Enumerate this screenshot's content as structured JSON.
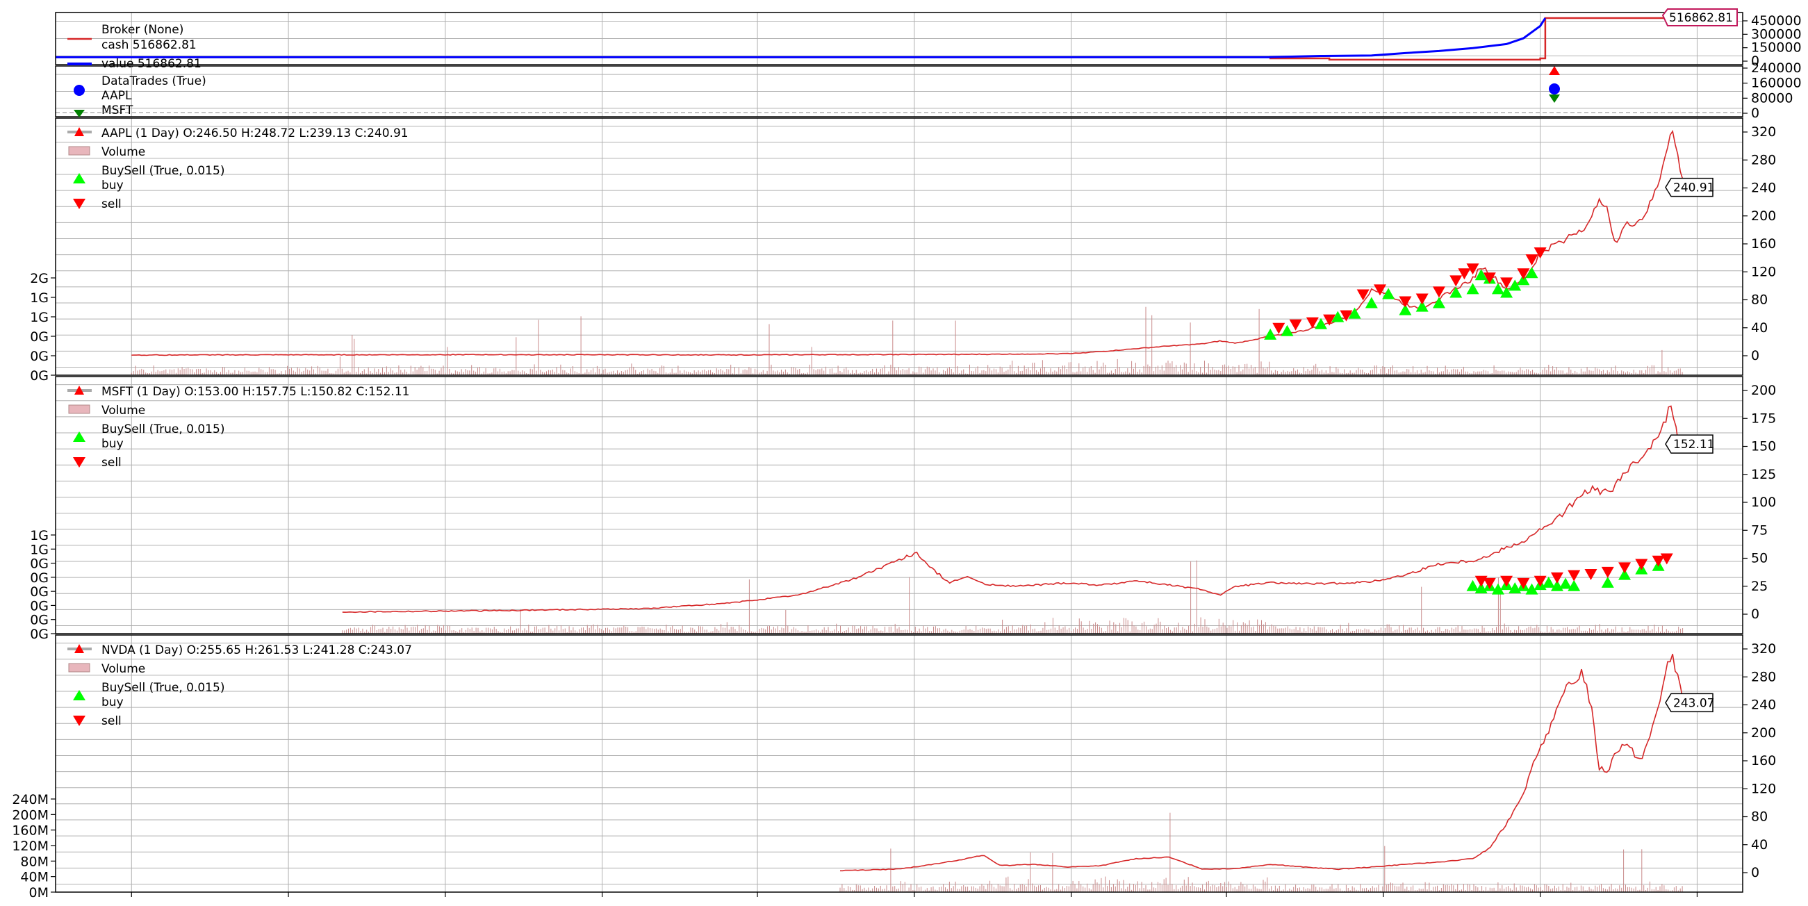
{
  "figure": {
    "colors": {
      "cash": "#d62728",
      "value": "#0000ff",
      "broker_marker": "#c2185b",
      "price": "#d62728",
      "volume": "#c98a8a",
      "buy": "#00ff00",
      "sell": "#ff0000",
      "trade_blue": "#0000ff",
      "trade_green": "#008000",
      "grid": "#b0b0b0",
      "axis": "#000000"
    }
  },
  "chart_data": [
    {
      "type": "line",
      "panel": "broker",
      "legend_title": "Broker (None)",
      "series": [
        {
          "name": "cash 516862.81",
          "color_key": "cash",
          "values": [
            [
              0,
              39000
            ],
            [
              0.72,
              39000
            ],
            [
              0.72,
              25000
            ],
            [
              0.755,
              25000
            ],
            [
              0.755,
              9000
            ],
            [
              0.88,
              9000
            ],
            [
              0.88,
              25000
            ],
            [
              0.883,
              25000
            ],
            [
              0.883,
              516862
            ],
            [
              0.975,
              516862
            ]
          ]
        },
        {
          "name": "value 516862.81",
          "color_key": "value",
          "values": [
            [
              0,
              39000
            ],
            [
              0.72,
              39000
            ],
            [
              0.72,
              41000
            ],
            [
              0.75,
              55000
            ],
            [
              0.78,
              60000
            ],
            [
              0.8,
              90000
            ],
            [
              0.82,
              115000
            ],
            [
              0.84,
              150000
            ],
            [
              0.86,
              200000
            ],
            [
              0.87,
              270000
            ],
            [
              0.88,
              420000
            ],
            [
              0.883,
              516862
            ]
          ]
        }
      ],
      "last_value_label": "516862.81",
      "y_ticks": [
        "450000",
        "300000",
        "150000",
        "0"
      ],
      "ylim": [
        0,
        516862
      ]
    },
    {
      "type": "scatter",
      "panel": "trades",
      "legend_title": "DataTrades (True)",
      "series": [
        {
          "name": "AAPL",
          "marker": "circle",
          "color_key": "trade_blue"
        },
        {
          "name": "MSFT",
          "marker": "triangle-down",
          "color_key": "trade_green"
        }
      ],
      "y_ticks": [
        "240000",
        "160000",
        "80000",
        "0"
      ],
      "ylim": [
        0,
        240000
      ]
    },
    {
      "type": "line",
      "panel": "AAPL",
      "legend_title": "AAPL (1 Day) O:246.50 H:248.72 L:239.13 C:240.91",
      "legend_items": [
        "Volume",
        "BuySell (True, 0.015)",
        "buy",
        "sell"
      ],
      "last_value_label": "240.91",
      "y_ticks": [
        "320",
        "280",
        "240",
        "200",
        "160",
        "120",
        "80",
        "40",
        "0"
      ],
      "ylim": [
        -10,
        340
      ],
      "vol_ticks": [
        "2G",
        "1G",
        "1G",
        "0G",
        "0G",
        "0G"
      ],
      "start": 0.045,
      "price": [
        [
          0.045,
          1
        ],
        [
          0.1,
          1.2
        ],
        [
          0.25,
          1.5
        ],
        [
          0.4,
          1.2
        ],
        [
          0.55,
          2
        ],
        [
          0.6,
          3
        ],
        [
          0.62,
          6
        ],
        [
          0.64,
          10
        ],
        [
          0.66,
          14
        ],
        [
          0.68,
          17
        ],
        [
          0.69,
          21
        ],
        [
          0.7,
          18
        ],
        [
          0.72,
          28
        ],
        [
          0.74,
          36
        ],
        [
          0.76,
          50
        ],
        [
          0.77,
          62
        ],
        [
          0.78,
          95
        ],
        [
          0.79,
          88
        ],
        [
          0.8,
          73
        ],
        [
          0.81,
          68
        ],
        [
          0.82,
          82
        ],
        [
          0.84,
          110
        ],
        [
          0.845,
          128
        ],
        [
          0.85,
          118
        ],
        [
          0.86,
          95
        ],
        [
          0.87,
          108
        ],
        [
          0.875,
          125
        ],
        [
          0.88,
          148
        ],
        [
          0.89,
          160
        ],
        [
          0.9,
          175
        ],
        [
          0.91,
          190
        ],
        [
          0.915,
          230
        ],
        [
          0.92,
          205
        ],
        [
          0.925,
          160
        ],
        [
          0.93,
          185
        ],
        [
          0.94,
          195
        ],
        [
          0.945,
          215
        ],
        [
          0.95,
          245
        ],
        [
          0.955,
          300
        ],
        [
          0.958,
          322
        ],
        [
          0.962,
          280
        ],
        [
          0.965,
          240
        ]
      ],
      "buy_points": [
        [
          0.72,
          30
        ],
        [
          0.73,
          35
        ],
        [
          0.75,
          45
        ],
        [
          0.76,
          55
        ],
        [
          0.77,
          60
        ],
        [
          0.78,
          75
        ],
        [
          0.79,
          88
        ],
        [
          0.8,
          65
        ],
        [
          0.81,
          70
        ],
        [
          0.82,
          75
        ],
        [
          0.83,
          90
        ],
        [
          0.84,
          95
        ],
        [
          0.845,
          115
        ],
        [
          0.85,
          110
        ],
        [
          0.855,
          95
        ],
        [
          0.86,
          90
        ],
        [
          0.865,
          100
        ],
        [
          0.87,
          108
        ],
        [
          0.875,
          118
        ]
      ],
      "sell_points": [
        [
          0.725,
          40
        ],
        [
          0.735,
          45
        ],
        [
          0.745,
          48
        ],
        [
          0.755,
          52
        ],
        [
          0.765,
          58
        ],
        [
          0.775,
          88
        ],
        [
          0.785,
          95
        ],
        [
          0.8,
          78
        ],
        [
          0.81,
          82
        ],
        [
          0.82,
          92
        ],
        [
          0.83,
          108
        ],
        [
          0.835,
          118
        ],
        [
          0.84,
          125
        ],
        [
          0.85,
          112
        ],
        [
          0.86,
          105
        ],
        [
          0.87,
          118
        ],
        [
          0.875,
          138
        ],
        [
          0.88,
          148
        ]
      ]
    },
    {
      "type": "line",
      "panel": "MSFT",
      "legend_title": "MSFT (1 Day) O:153.00 H:157.75 L:150.82 C:152.11",
      "legend_items": [
        "Volume",
        "BuySell (True, 0.015)",
        "buy",
        "sell"
      ],
      "last_value_label": "152.11",
      "y_ticks": [
        "200",
        "175",
        "150",
        "125",
        "100",
        "75",
        "50",
        "25",
        "0"
      ],
      "ylim": [
        -8,
        200
      ],
      "vol_ticks": [
        "1G",
        "1G",
        "0G",
        "0G",
        "0G",
        "0G",
        "0G",
        "0G"
      ],
      "start": 0.17,
      "price": [
        [
          0.17,
          2
        ],
        [
          0.25,
          3
        ],
        [
          0.35,
          5
        ],
        [
          0.4,
          10
        ],
        [
          0.44,
          17
        ],
        [
          0.47,
          30
        ],
        [
          0.49,
          42
        ],
        [
          0.5,
          48
        ],
        [
          0.51,
          55
        ],
        [
          0.52,
          40
        ],
        [
          0.53,
          28
        ],
        [
          0.54,
          34
        ],
        [
          0.55,
          27
        ],
        [
          0.57,
          25
        ],
        [
          0.6,
          28
        ],
        [
          0.62,
          26
        ],
        [
          0.64,
          30
        ],
        [
          0.66,
          26
        ],
        [
          0.68,
          22
        ],
        [
          0.69,
          17
        ],
        [
          0.7,
          25
        ],
        [
          0.72,
          28
        ],
        [
          0.75,
          27
        ],
        [
          0.78,
          29
        ],
        [
          0.8,
          35
        ],
        [
          0.82,
          45
        ],
        [
          0.84,
          48
        ],
        [
          0.85,
          52
        ],
        [
          0.86,
          60
        ],
        [
          0.87,
          65
        ],
        [
          0.88,
          75
        ],
        [
          0.89,
          85
        ],
        [
          0.9,
          100
        ],
        [
          0.91,
          112
        ],
        [
          0.92,
          108
        ],
        [
          0.93,
          125
        ],
        [
          0.94,
          140
        ],
        [
          0.95,
          162
        ],
        [
          0.955,
          178
        ],
        [
          0.958,
          188
        ],
        [
          0.962,
          150
        ],
        [
          0.965,
          152
        ]
      ],
      "buy_points": [
        [
          0.84,
          25
        ],
        [
          0.845,
          23
        ],
        [
          0.85,
          25
        ],
        [
          0.855,
          22
        ],
        [
          0.86,
          26
        ],
        [
          0.865,
          23
        ],
        [
          0.87,
          25
        ],
        [
          0.875,
          22
        ],
        [
          0.88,
          26
        ],
        [
          0.885,
          28
        ],
        [
          0.89,
          25
        ],
        [
          0.895,
          27
        ],
        [
          0.9,
          25
        ],
        [
          0.92,
          28
        ],
        [
          0.93,
          35
        ],
        [
          0.94,
          40
        ],
        [
          0.95,
          43
        ]
      ],
      "sell_points": [
        [
          0.845,
          30
        ],
        [
          0.85,
          28
        ],
        [
          0.86,
          30
        ],
        [
          0.87,
          28
        ],
        [
          0.88,
          30
        ],
        [
          0.89,
          33
        ],
        [
          0.9,
          35
        ],
        [
          0.91,
          36
        ],
        [
          0.92,
          38
        ],
        [
          0.93,
          42
        ],
        [
          0.94,
          45
        ],
        [
          0.95,
          48
        ],
        [
          0.955,
          50
        ]
      ]
    },
    {
      "type": "line",
      "panel": "NVDA",
      "legend_title": "NVDA (1 Day) O:255.65 H:261.53 L:241.28 C:243.07",
      "legend_items": [
        "Volume",
        "BuySell (True, 0.015)",
        "buy",
        "sell"
      ],
      "last_value_label": "243.07",
      "y_ticks": [
        "320",
        "280",
        "240",
        "200",
        "160",
        "120",
        "80",
        "40",
        "0"
      ],
      "ylim": [
        -10,
        330
      ],
      "vol_ticks": [
        "240M",
        "200M",
        "160M",
        "120M",
        "80M",
        "40M",
        "0M"
      ],
      "start": 0.465,
      "price": [
        [
          0.465,
          3
        ],
        [
          0.5,
          5
        ],
        [
          0.52,
          12
        ],
        [
          0.54,
          20
        ],
        [
          0.55,
          25
        ],
        [
          0.56,
          10
        ],
        [
          0.58,
          12
        ],
        [
          0.6,
          8
        ],
        [
          0.62,
          10
        ],
        [
          0.64,
          20
        ],
        [
          0.66,
          22
        ],
        [
          0.68,
          5
        ],
        [
          0.7,
          6
        ],
        [
          0.72,
          12
        ],
        [
          0.74,
          8
        ],
        [
          0.76,
          5
        ],
        [
          0.78,
          8
        ],
        [
          0.8,
          12
        ],
        [
          0.82,
          15
        ],
        [
          0.84,
          20
        ],
        [
          0.85,
          35
        ],
        [
          0.86,
          70
        ],
        [
          0.87,
          115
        ],
        [
          0.88,
          180
        ],
        [
          0.89,
          230
        ],
        [
          0.895,
          260
        ],
        [
          0.9,
          272
        ],
        [
          0.905,
          290
        ],
        [
          0.91,
          240
        ],
        [
          0.915,
          150
        ],
        [
          0.92,
          145
        ],
        [
          0.925,
          175
        ],
        [
          0.93,
          185
        ],
        [
          0.94,
          160
        ],
        [
          0.945,
          195
        ],
        [
          0.95,
          240
        ],
        [
          0.955,
          290
        ],
        [
          0.958,
          315
        ],
        [
          0.962,
          270
        ],
        [
          0.965,
          243
        ]
      ],
      "buy_points": [],
      "sell_points": []
    }
  ]
}
